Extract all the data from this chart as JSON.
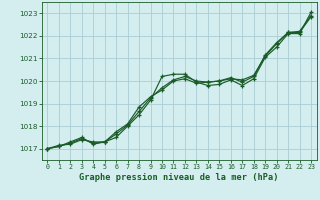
{
  "title": "Graphe pression niveau de la mer (hPa)",
  "xlim": [
    -0.5,
    23.5
  ],
  "ylim": [
    1016.5,
    1023.5
  ],
  "yticks": [
    1017,
    1018,
    1019,
    1020,
    1021,
    1022,
    1023
  ],
  "xticks": [
    0,
    1,
    2,
    3,
    4,
    5,
    6,
    7,
    8,
    9,
    10,
    11,
    12,
    13,
    14,
    15,
    16,
    17,
    18,
    19,
    20,
    21,
    22,
    23
  ],
  "bg_color": "#d4eef0",
  "grid_color": "#aaccd4",
  "line_color": "#1a5c28",
  "label_bg": "#c8e8d0",
  "line1": [
    1017.0,
    1017.15,
    1017.2,
    1017.4,
    1017.3,
    1017.3,
    1017.5,
    1018.0,
    1018.5,
    1019.15,
    1020.2,
    1020.3,
    1020.3,
    1019.95,
    1019.8,
    1019.85,
    1020.05,
    1019.8,
    1020.1,
    1021.05,
    1021.5,
    1022.1,
    1022.1,
    1023.05
  ],
  "line2": [
    1017.0,
    1017.1,
    1017.25,
    1017.45,
    1017.25,
    1017.3,
    1017.65,
    1018.05,
    1018.65,
    1019.25,
    1019.7,
    1020.05,
    1020.2,
    1020.0,
    1019.95,
    1020.0,
    1020.1,
    1020.05,
    1020.25,
    1021.1,
    1021.65,
    1022.15,
    1022.2,
    1022.9
  ],
  "line3": [
    1017.0,
    1017.1,
    1017.3,
    1017.5,
    1017.2,
    1017.3,
    1017.75,
    1018.1,
    1018.85,
    1019.3,
    1019.6,
    1020.0,
    1020.1,
    1019.9,
    1019.95,
    1020.0,
    1020.15,
    1019.95,
    1020.2,
    1021.15,
    1021.7,
    1022.15,
    1022.15,
    1022.85
  ],
  "marker": "+",
  "markersize": 3.5,
  "linewidth": 0.85
}
